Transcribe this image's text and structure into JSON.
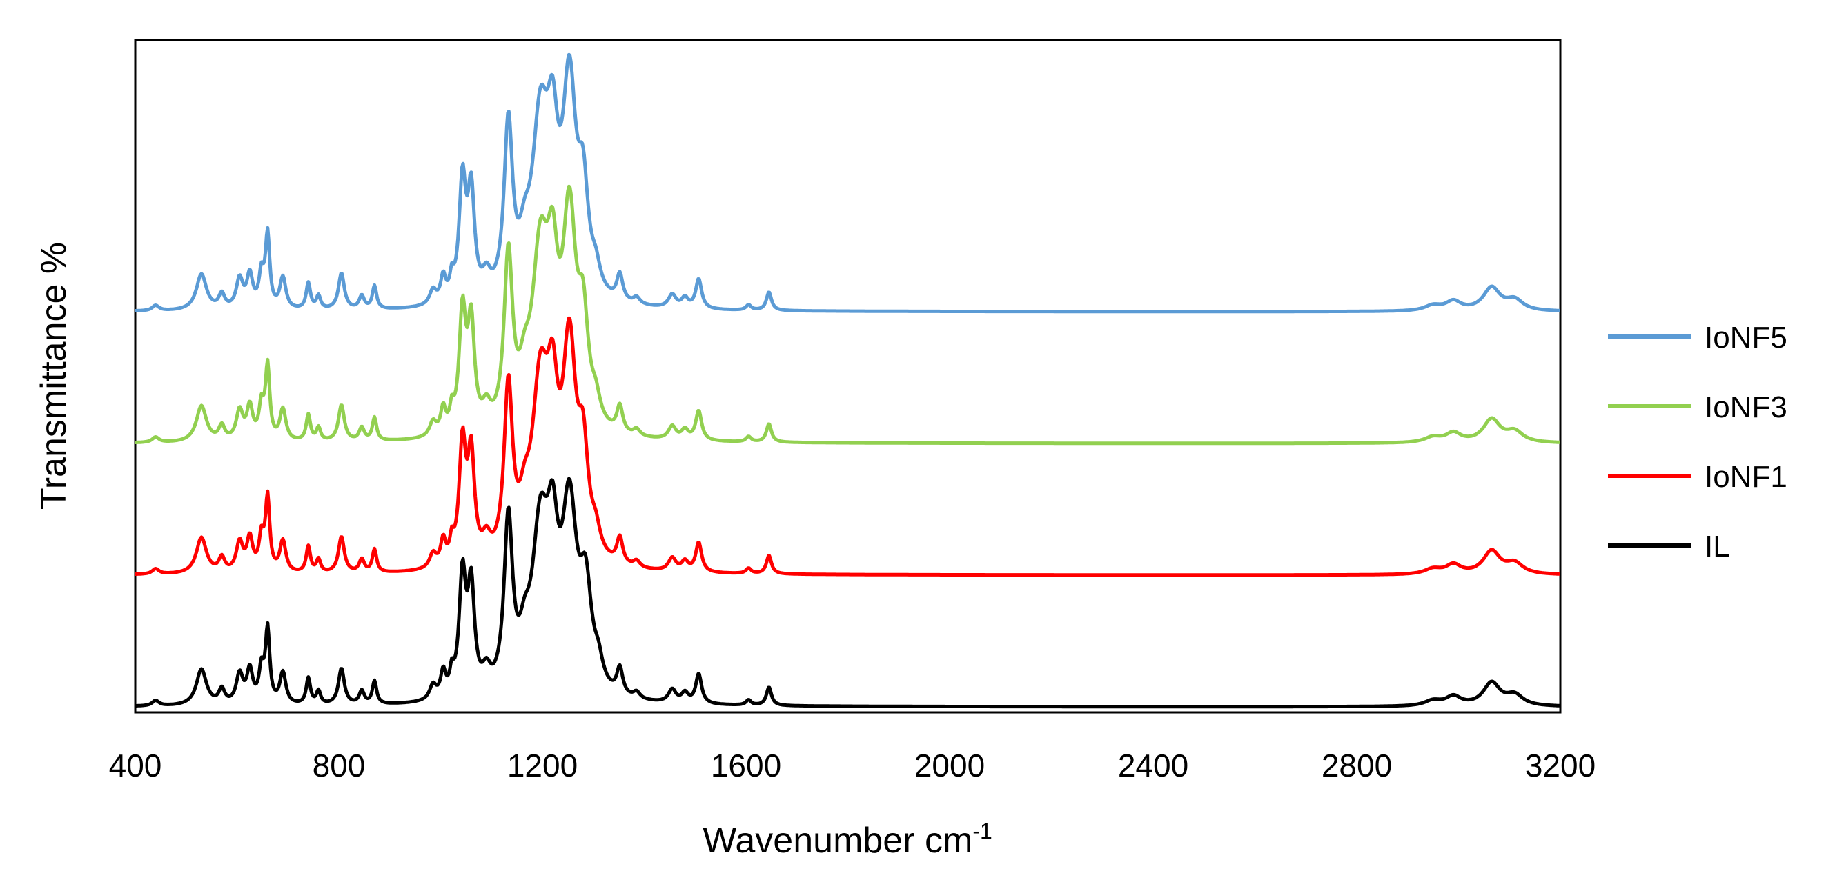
{
  "chart_data": {
    "type": "line",
    "title": "",
    "xlabel": "Wavenumber cm",
    "xlabel_superscript": "-1",
    "ylabel": "Transmittance %",
    "xlim": [
      400,
      3200
    ],
    "ylim": [
      0,
      100
    ],
    "xticks": [
      "400",
      "800",
      "1200",
      "1600",
      "2000",
      "2400",
      "2800",
      "3200"
    ],
    "grid": false,
    "legend_position": "right",
    "peaks_note": "y values are relative transmittance in arbitrary units; curves are vertically offset stacks",
    "series": [
      {
        "name": "IoNF5",
        "color": "#5B9BD5",
        "baseline": 60,
        "peaks": [
          [
            440,
            0.8,
            8
          ],
          [
            530,
            5.5,
            12
          ],
          [
            570,
            2.2,
            7
          ],
          [
            605,
            4.5,
            8
          ],
          [
            625,
            5.0,
            7
          ],
          [
            648,
            5.0,
            6
          ],
          [
            660,
            11.0,
            5
          ],
          [
            690,
            4.8,
            7
          ],
          [
            740,
            4.0,
            5
          ],
          [
            760,
            2.0,
            5
          ],
          [
            805,
            5.5,
            7
          ],
          [
            845,
            2.0,
            6
          ],
          [
            870,
            3.5,
            5
          ],
          [
            985,
            2.2,
            8
          ],
          [
            1005,
            3.8,
            6
          ],
          [
            1022,
            3.0,
            5
          ],
          [
            1043,
            18.0,
            8
          ],
          [
            1060,
            16.0,
            8
          ],
          [
            1090,
            3.0,
            10
          ],
          [
            1133,
            26.0,
            10
          ],
          [
            1165,
            5.0,
            12
          ],
          [
            1196,
            26.0,
            20
          ],
          [
            1220,
            18.0,
            13
          ],
          [
            1253,
            31.0,
            16
          ],
          [
            1280,
            14.0,
            12
          ],
          [
            1305,
            3.0,
            10
          ],
          [
            1352,
            4.0,
            7
          ],
          [
            1385,
            1.0,
            8
          ],
          [
            1455,
            2.0,
            9
          ],
          [
            1480,
            1.5,
            8
          ],
          [
            1507,
            4.5,
            7
          ],
          [
            1605,
            0.8,
            6
          ],
          [
            1645,
            2.8,
            6
          ],
          [
            2950,
            0.8,
            20
          ],
          [
            2990,
            1.4,
            18
          ],
          [
            3065,
            3.5,
            20
          ],
          [
            3110,
            1.6,
            20
          ]
        ]
      },
      {
        "name": "IoNF3",
        "color": "#92D050",
        "baseline": 40,
        "peaks": [
          [
            440,
            0.8,
            8
          ],
          [
            530,
            5.5,
            12
          ],
          [
            570,
            2.2,
            7
          ],
          [
            605,
            4.5,
            8
          ],
          [
            625,
            5.0,
            7
          ],
          [
            648,
            5.0,
            6
          ],
          [
            660,
            11.0,
            5
          ],
          [
            690,
            4.8,
            7
          ],
          [
            740,
            4.0,
            5
          ],
          [
            760,
            2.0,
            5
          ],
          [
            805,
            5.5,
            7
          ],
          [
            845,
            2.0,
            6
          ],
          [
            870,
            3.5,
            5
          ],
          [
            985,
            2.2,
            8
          ],
          [
            1005,
            3.8,
            6
          ],
          [
            1022,
            3.0,
            5
          ],
          [
            1043,
            18.0,
            8
          ],
          [
            1060,
            16.0,
            8
          ],
          [
            1090,
            3.0,
            10
          ],
          [
            1133,
            26.0,
            10
          ],
          [
            1165,
            5.0,
            12
          ],
          [
            1196,
            26.0,
            20
          ],
          [
            1220,
            18.0,
            13
          ],
          [
            1253,
            31.0,
            16
          ],
          [
            1280,
            14.0,
            12
          ],
          [
            1305,
            3.0,
            10
          ],
          [
            1352,
            4.0,
            7
          ],
          [
            1385,
            1.0,
            8
          ],
          [
            1455,
            2.0,
            9
          ],
          [
            1480,
            1.5,
            8
          ],
          [
            1507,
            4.5,
            7
          ],
          [
            1605,
            0.8,
            6
          ],
          [
            1645,
            2.8,
            6
          ],
          [
            2950,
            0.8,
            20
          ],
          [
            2990,
            1.4,
            18
          ],
          [
            3065,
            3.5,
            20
          ],
          [
            3110,
            1.6,
            20
          ]
        ]
      },
      {
        "name": "IoNF1",
        "color": "#FF0000",
        "baseline": 20,
        "peaks": [
          [
            440,
            0.8,
            8
          ],
          [
            530,
            5.5,
            12
          ],
          [
            570,
            2.2,
            7
          ],
          [
            605,
            4.5,
            8
          ],
          [
            625,
            5.0,
            7
          ],
          [
            648,
            5.0,
            6
          ],
          [
            660,
            11.0,
            5
          ],
          [
            690,
            4.8,
            7
          ],
          [
            740,
            4.0,
            5
          ],
          [
            760,
            2.0,
            5
          ],
          [
            805,
            5.5,
            7
          ],
          [
            845,
            2.0,
            6
          ],
          [
            870,
            3.5,
            5
          ],
          [
            985,
            2.2,
            8
          ],
          [
            1005,
            3.8,
            6
          ],
          [
            1022,
            3.0,
            5
          ],
          [
            1043,
            18.0,
            8
          ],
          [
            1060,
            16.0,
            8
          ],
          [
            1090,
            3.0,
            10
          ],
          [
            1133,
            26.0,
            10
          ],
          [
            1165,
            5.0,
            12
          ],
          [
            1196,
            26.0,
            20
          ],
          [
            1220,
            18.0,
            13
          ],
          [
            1253,
            31.0,
            16
          ],
          [
            1280,
            14.0,
            12
          ],
          [
            1305,
            3.0,
            10
          ],
          [
            1352,
            4.0,
            7
          ],
          [
            1385,
            1.0,
            8
          ],
          [
            1455,
            2.0,
            9
          ],
          [
            1480,
            1.5,
            8
          ],
          [
            1507,
            4.5,
            7
          ],
          [
            1605,
            0.8,
            6
          ],
          [
            1645,
            2.8,
            6
          ],
          [
            2950,
            0.8,
            20
          ],
          [
            2990,
            1.4,
            18
          ],
          [
            3065,
            3.5,
            20
          ],
          [
            3110,
            1.6,
            20
          ]
        ]
      },
      {
        "name": "IL",
        "color": "#000000",
        "baseline": 0,
        "peaks": [
          [
            440,
            0.8,
            8
          ],
          [
            530,
            5.5,
            12
          ],
          [
            570,
            2.2,
            7
          ],
          [
            605,
            4.5,
            8
          ],
          [
            625,
            5.0,
            7
          ],
          [
            648,
            5.0,
            6
          ],
          [
            660,
            11.0,
            5
          ],
          [
            690,
            4.8,
            7
          ],
          [
            740,
            4.0,
            5
          ],
          [
            760,
            2.0,
            5
          ],
          [
            805,
            5.5,
            7
          ],
          [
            845,
            2.0,
            6
          ],
          [
            870,
            3.5,
            5
          ],
          [
            985,
            2.2,
            8
          ],
          [
            1005,
            3.8,
            6
          ],
          [
            1022,
            3.0,
            5
          ],
          [
            1043,
            18.0,
            8
          ],
          [
            1060,
            16.0,
            8
          ],
          [
            1090,
            3.0,
            10
          ],
          [
            1133,
            26.0,
            10
          ],
          [
            1165,
            5.0,
            12
          ],
          [
            1196,
            24.0,
            20
          ],
          [
            1220,
            17.0,
            13
          ],
          [
            1253,
            27.0,
            18
          ],
          [
            1285,
            14.0,
            14
          ],
          [
            1310,
            3.0,
            10
          ],
          [
            1352,
            4.0,
            7
          ],
          [
            1385,
            1.0,
            8
          ],
          [
            1455,
            2.0,
            9
          ],
          [
            1480,
            1.5,
            8
          ],
          [
            1507,
            4.5,
            7
          ],
          [
            1605,
            0.8,
            6
          ],
          [
            1645,
            2.8,
            6
          ],
          [
            2950,
            0.8,
            20
          ],
          [
            2990,
            1.4,
            18
          ],
          [
            3065,
            3.5,
            20
          ],
          [
            3110,
            1.6,
            20
          ]
        ]
      }
    ]
  }
}
